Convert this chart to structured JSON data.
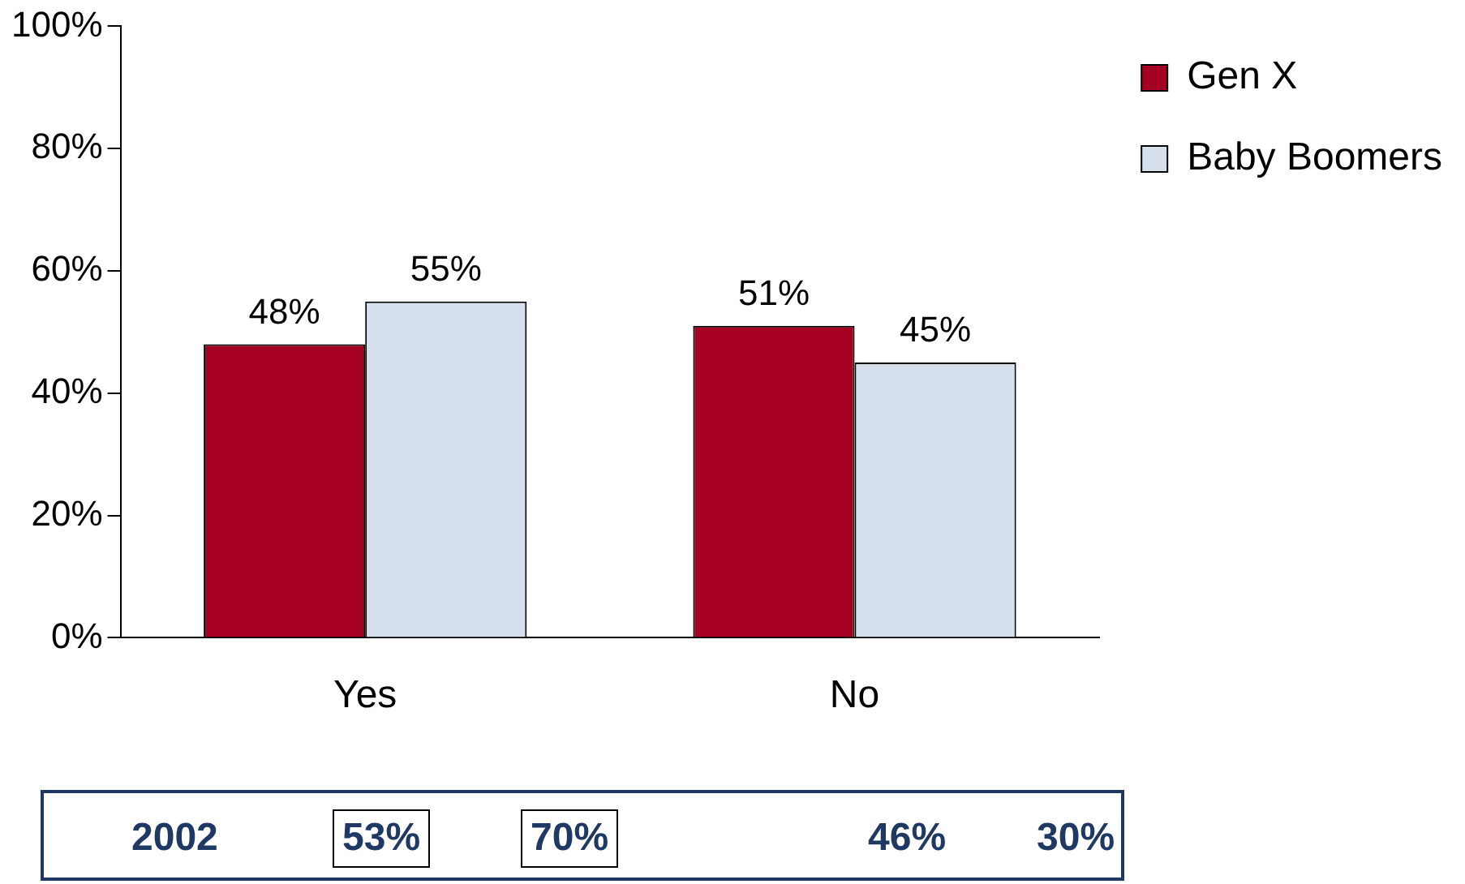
{
  "chart_data": {
    "type": "bar",
    "categories": [
      "Yes",
      "No"
    ],
    "series": [
      {
        "name": "Gen X",
        "color": "#a50021",
        "values": [
          48,
          51
        ],
        "value_labels": [
          "48%",
          "51%"
        ]
      },
      {
        "name": "Baby Boomers",
        "color": "#d6dfec",
        "values": [
          55,
          45
        ],
        "value_labels": [
          "55%",
          "45%"
        ]
      }
    ],
    "ylim": [
      0,
      100
    ],
    "yticks": [
      {
        "value": 0,
        "label": "0%"
      },
      {
        "value": 20,
        "label": "20%"
      },
      {
        "value": 40,
        "label": "40%"
      },
      {
        "value": 60,
        "label": "60%"
      },
      {
        "value": 80,
        "label": "80%"
      },
      {
        "value": 100,
        "label": "100%"
      }
    ],
    "grid": false,
    "legend": "top right",
    "annotations": [
      "2002",
      "53%",
      "70%",
      "46%",
      "30%"
    ]
  }
}
